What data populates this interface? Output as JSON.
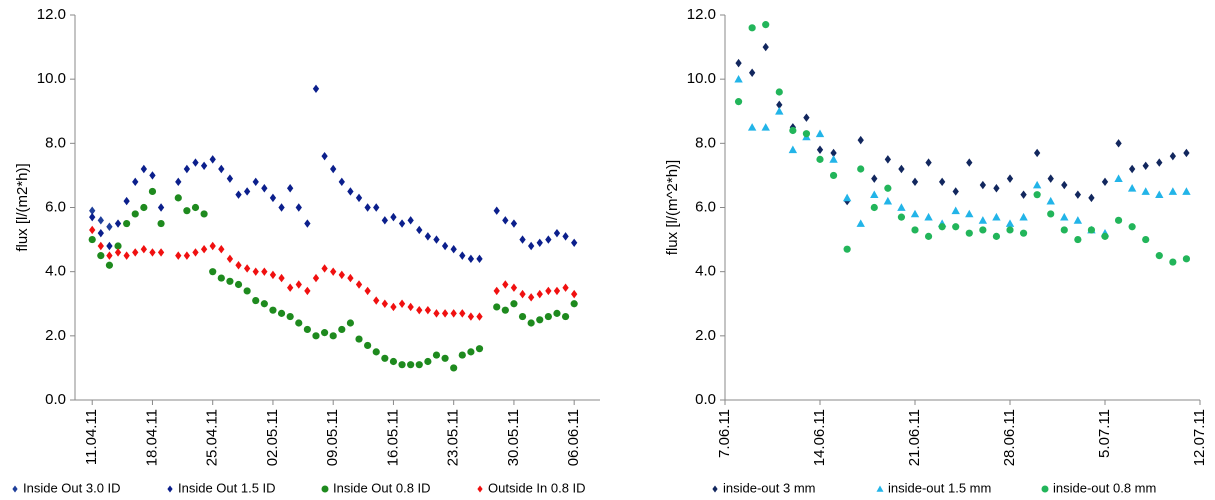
{
  "chart_data": [
    {
      "type": "scatter",
      "y_label": "flux [l/(m2*h)]",
      "x": [
        "2011-04-11",
        "2011-04-12",
        "2011-04-13",
        "2011-04-14",
        "2011-04-15",
        "2011-04-16",
        "2011-04-17",
        "2011-04-18",
        "2011-04-19",
        "2011-04-21",
        "2011-04-22",
        "2011-04-23",
        "2011-04-24",
        "2011-04-25",
        "2011-04-26",
        "2011-04-27",
        "2011-04-28",
        "2011-04-29",
        "2011-04-30",
        "2011-05-01",
        "2011-05-02",
        "2011-05-03",
        "2011-05-04",
        "2011-05-05",
        "2011-05-06",
        "2011-05-07",
        "2011-05-08",
        "2011-05-09",
        "2011-05-10",
        "2011-05-11",
        "2011-05-12",
        "2011-05-13",
        "2011-05-14",
        "2011-05-15",
        "2011-05-16",
        "2011-05-17",
        "2011-05-18",
        "2011-05-19",
        "2011-05-20",
        "2011-05-21",
        "2011-05-22",
        "2011-05-23",
        "2011-05-24",
        "2011-05-25",
        "2011-05-26",
        "2011-05-28",
        "2011-05-29",
        "2011-05-30",
        "2011-05-31",
        "2011-06-01",
        "2011-06-02",
        "2011-06-03",
        "2011-06-04",
        "2011-06-05",
        "2011-06-06"
      ],
      "series": [
        {
          "name": "Inside Out 3.0 ID",
          "color": "#1f3f9a",
          "marker": "diamond",
          "x": [
            "2011-04-11",
            "2011-04-12",
            "2011-04-13"
          ],
          "values": [
            5.9,
            5.6,
            5.4
          ]
        },
        {
          "name": "Inside Out 1.5 ID",
          "color": "#0b1f8c",
          "marker": "diamond",
          "values": [
            5.7,
            5.2,
            4.8,
            5.5,
            6.2,
            6.8,
            7.2,
            7.0,
            6.0,
            6.8,
            7.2,
            7.4,
            7.3,
            7.5,
            7.2,
            6.9,
            6.4,
            6.5,
            6.8,
            6.6,
            6.3,
            6.0,
            6.6,
            6.0,
            5.5,
            9.7,
            7.6,
            7.2,
            6.8,
            6.5,
            6.3,
            6.0,
            6.0,
            5.6,
            5.7,
            5.5,
            5.6,
            5.3,
            5.1,
            5.0,
            4.8,
            4.7,
            4.5,
            4.4,
            4.4,
            5.9,
            5.6,
            5.5,
            5.0,
            4.8,
            4.9,
            5.0,
            5.2,
            5.1,
            4.9
          ]
        },
        {
          "name": "Inside Out 0.8 ID",
          "color": "#1e8a1e",
          "marker": "circle",
          "values": [
            5.0,
            4.5,
            4.2,
            4.8,
            5.5,
            5.8,
            6.0,
            6.5,
            5.5,
            6.3,
            5.9,
            6.0,
            5.8,
            4.0,
            3.8,
            3.7,
            3.6,
            3.4,
            3.1,
            3.0,
            2.8,
            2.7,
            2.6,
            2.4,
            2.2,
            2.0,
            2.1,
            2.0,
            2.2,
            2.4,
            1.9,
            1.7,
            1.5,
            1.3,
            1.2,
            1.1,
            1.1,
            1.1,
            1.2,
            1.4,
            1.3,
            1.0,
            1.4,
            1.5,
            1.6,
            2.9,
            2.8,
            3.0,
            2.6,
            2.4,
            2.5,
            2.6,
            2.7,
            2.6,
            3.0
          ]
        },
        {
          "name": "Outside In 0.8 ID",
          "color": "#f01010",
          "marker": "diamond",
          "values": [
            5.3,
            4.8,
            4.5,
            4.6,
            4.5,
            4.6,
            4.7,
            4.6,
            4.6,
            4.5,
            4.5,
            4.6,
            4.7,
            4.8,
            4.7,
            4.4,
            4.2,
            4.1,
            4.0,
            4.0,
            3.9,
            3.8,
            3.5,
            3.6,
            3.4,
            3.8,
            4.1,
            4.0,
            3.9,
            3.8,
            3.6,
            3.4,
            3.1,
            3.0,
            2.9,
            3.0,
            2.9,
            2.8,
            2.8,
            2.7,
            2.7,
            2.7,
            2.7,
            2.6,
            2.6,
            3.4,
            3.6,
            3.5,
            3.3,
            3.2,
            3.3,
            3.4,
            3.4,
            3.5,
            3.3
          ]
        }
      ],
      "xlim": [
        "2011-04-09",
        "2011-06-09"
      ],
      "xticks": [
        {
          "value": "2011-04-11",
          "label": "11.04.11"
        },
        {
          "value": "2011-04-18",
          "label": "18.04.11"
        },
        {
          "value": "2011-04-25",
          "label": "25.04.11"
        },
        {
          "value": "2011-05-02",
          "label": "02.05.11"
        },
        {
          "value": "2011-05-09",
          "label": "09.05.11"
        },
        {
          "value": "2011-05-16",
          "label": "16.05.11"
        },
        {
          "value": "2011-05-23",
          "label": "23.05.11"
        },
        {
          "value": "2011-05-30",
          "label": "30.05.11"
        },
        {
          "value": "2011-06-06",
          "label": "06.06.11"
        }
      ],
      "ylim": [
        0,
        12
      ],
      "yticks": [
        {
          "value": 0,
          "label": "0.0"
        },
        {
          "value": 2,
          "label": "2.0"
        },
        {
          "value": 4,
          "label": "4.0"
        },
        {
          "value": 6,
          "label": "6.0"
        },
        {
          "value": 8,
          "label": "8.0"
        },
        {
          "value": 10,
          "label": "10.0"
        },
        {
          "value": 12,
          "label": "12.0"
        }
      ],
      "legend": "bottom"
    },
    {
      "type": "scatter",
      "y_label": "flux [l/(m^2*h)]",
      "x": [
        "2011-06-08",
        "2011-06-09",
        "2011-06-10",
        "2011-06-11",
        "2011-06-12",
        "2011-06-13",
        "2011-06-14",
        "2011-06-15",
        "2011-06-16",
        "2011-06-17",
        "2011-06-18",
        "2011-06-19",
        "2011-06-20",
        "2011-06-21",
        "2011-06-22",
        "2011-06-23",
        "2011-06-24",
        "2011-06-25",
        "2011-06-26",
        "2011-06-27",
        "2011-06-28",
        "2011-06-29",
        "2011-06-30",
        "2011-07-01",
        "2011-07-02",
        "2011-07-03",
        "2011-07-04",
        "2011-07-05",
        "2011-07-06",
        "2011-07-07",
        "2011-07-08",
        "2011-07-09",
        "2011-07-10",
        "2011-07-11"
      ],
      "series": [
        {
          "name": "inside-out 3 mm",
          "color": "#12275e",
          "marker": "diamond",
          "values": [
            10.5,
            10.2,
            11.0,
            9.2,
            8.5,
            8.8,
            7.8,
            7.7,
            6.2,
            8.1,
            6.9,
            7.5,
            7.2,
            6.8,
            7.4,
            6.8,
            6.5,
            7.4,
            6.7,
            6.6,
            6.9,
            6.4,
            7.7,
            6.9,
            6.7,
            6.4,
            6.3,
            6.8,
            8.0,
            7.2,
            7.3,
            7.4,
            7.6,
            7.7
          ]
        },
        {
          "name": "inside-out 1.5 mm",
          "color": "#22b4e8",
          "marker": "triangle",
          "values": [
            10.0,
            8.5,
            8.5,
            9.0,
            7.8,
            8.2,
            8.3,
            7.5,
            6.3,
            5.5,
            6.4,
            6.2,
            6.0,
            5.8,
            5.7,
            5.5,
            5.9,
            5.8,
            5.6,
            5.7,
            5.5,
            5.7,
            6.7,
            6.2,
            5.7,
            5.6,
            5.3,
            5.2,
            6.9,
            6.6,
            6.5,
            6.4,
            6.5,
            6.5
          ]
        },
        {
          "name": "inside-out 0.8 mm",
          "color": "#22b55a",
          "marker": "circle",
          "values": [
            9.3,
            11.6,
            11.7,
            9.6,
            8.4,
            8.3,
            7.5,
            7.0,
            4.7,
            7.2,
            6.0,
            6.6,
            5.7,
            5.3,
            5.1,
            5.4,
            5.4,
            5.2,
            5.3,
            5.1,
            5.3,
            5.2,
            6.4,
            5.8,
            5.3,
            5.0,
            5.3,
            5.1,
            5.6,
            5.4,
            5.0,
            4.5,
            4.3,
            4.4
          ]
        }
      ],
      "xlim": [
        "2011-06-07",
        "2011-07-12"
      ],
      "xticks": [
        {
          "value": "2011-06-07",
          "label": "7.06.11"
        },
        {
          "value": "2011-06-14",
          "label": "14.06.11"
        },
        {
          "value": "2011-06-21",
          "label": "21.06.11"
        },
        {
          "value": "2011-06-28",
          "label": "28.06.11"
        },
        {
          "value": "2011-07-05",
          "label": "5.07.11"
        },
        {
          "value": "2011-07-12",
          "label": "12.07.11"
        }
      ],
      "ylim": [
        0,
        12
      ],
      "yticks": [
        {
          "value": 0,
          "label": "0.0"
        },
        {
          "value": 2,
          "label": "2.0"
        },
        {
          "value": 4,
          "label": "4.0"
        },
        {
          "value": 6,
          "label": "6.0"
        },
        {
          "value": 8,
          "label": "8.0"
        },
        {
          "value": 10,
          "label": "10.0"
        },
        {
          "value": 12,
          "label": "12.0"
        }
      ],
      "legend": "bottom"
    }
  ]
}
